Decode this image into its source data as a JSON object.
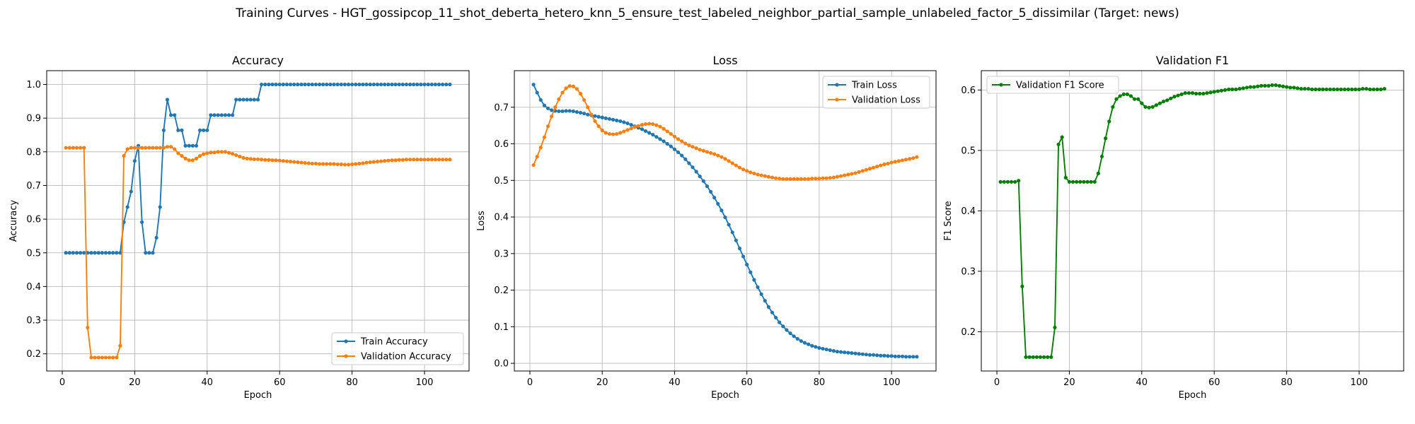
{
  "suptitle": "Training Curves - HGT_gossipcop_11_shot_deberta_hetero_knn_5_ensure_test_labeled_neighbor_partial_sample_unlabeled_factor_5_dissimilar (Target: news)",
  "colors": {
    "blue": "#1f77b4",
    "orange": "#ff7f0e",
    "green": "#008000",
    "grid": "#b0b0b0"
  },
  "chart_data": [
    {
      "type": "line",
      "title": "Accuracy",
      "xlabel": "Epoch",
      "ylabel": "Accuracy",
      "xlim": [
        -4.3,
        112.3
      ],
      "ylim": [
        0.149,
        1.041
      ],
      "xticks": [
        0,
        20,
        40,
        60,
        80,
        100
      ],
      "yticks": [
        0.2,
        0.3,
        0.4,
        0.5,
        0.6,
        0.7,
        0.8,
        0.9,
        1.0
      ],
      "ytick_labels": [
        "0.2",
        "0.3",
        "0.4",
        "0.5",
        "0.6",
        "0.7",
        "0.8",
        "0.9",
        "1.0"
      ],
      "grid": true,
      "legend_position": "lower-right",
      "series": [
        {
          "name": "Train Accuracy",
          "color": "#1f77b4",
          "values": [
            0.5,
            0.5,
            0.5,
            0.5,
            0.5,
            0.5,
            0.5,
            0.5,
            0.5,
            0.5,
            0.5,
            0.5,
            0.5,
            0.5,
            0.5,
            0.5,
            0.591,
            0.636,
            0.682,
            0.773,
            0.818,
            0.591,
            0.5,
            0.5,
            0.5,
            0.545,
            0.636,
            0.864,
            0.955,
            0.909,
            0.909,
            0.864,
            0.864,
            0.818,
            0.818,
            0.818,
            0.818,
            0.864,
            0.864,
            0.864,
            0.909,
            0.909,
            0.909,
            0.909,
            0.909,
            0.909,
            0.909,
            0.955,
            0.955,
            0.955,
            0.955,
            0.955,
            0.955,
            0.955,
            1.0,
            1.0,
            1.0,
            1.0,
            1.0,
            1.0,
            1.0,
            1.0,
            1.0,
            1.0,
            1.0,
            1.0,
            1.0,
            1.0,
            1.0,
            1.0,
            1.0,
            1.0,
            1.0,
            1.0,
            1.0,
            1.0,
            1.0,
            1.0,
            1.0,
            1.0,
            1.0,
            1.0,
            1.0,
            1.0,
            1.0,
            1.0,
            1.0,
            1.0,
            1.0,
            1.0,
            1.0,
            1.0,
            1.0,
            1.0,
            1.0,
            1.0,
            1.0,
            1.0,
            1.0,
            1.0,
            1.0,
            1.0,
            1.0,
            1.0,
            1.0,
            1.0,
            1.0
          ]
        },
        {
          "name": "Validation Accuracy",
          "color": "#ff7f0e",
          "values": [
            0.812,
            0.812,
            0.812,
            0.812,
            0.812,
            0.812,
            0.278,
            0.189,
            0.189,
            0.189,
            0.189,
            0.189,
            0.189,
            0.189,
            0.189,
            0.224,
            0.788,
            0.808,
            0.812,
            0.812,
            0.812,
            0.812,
            0.812,
            0.812,
            0.812,
            0.812,
            0.812,
            0.812,
            0.815,
            0.815,
            0.808,
            0.796,
            0.788,
            0.78,
            0.775,
            0.775,
            0.78,
            0.788,
            0.793,
            0.796,
            0.798,
            0.798,
            0.8,
            0.8,
            0.8,
            0.797,
            0.794,
            0.79,
            0.786,
            0.782,
            0.78,
            0.779,
            0.778,
            0.778,
            0.777,
            0.776,
            0.776,
            0.775,
            0.775,
            0.774,
            0.773,
            0.772,
            0.771,
            0.77,
            0.769,
            0.768,
            0.767,
            0.766,
            0.765,
            0.765,
            0.764,
            0.764,
            0.764,
            0.764,
            0.764,
            0.763,
            0.763,
            0.762,
            0.762,
            0.763,
            0.764,
            0.765,
            0.766,
            0.768,
            0.769,
            0.77,
            0.771,
            0.772,
            0.773,
            0.774,
            0.775,
            0.775,
            0.776,
            0.776,
            0.777,
            0.777,
            0.777,
            0.777,
            0.777,
            0.777,
            0.777,
            0.777,
            0.777,
            0.777,
            0.777,
            0.777,
            0.777
          ]
        }
      ]
    },
    {
      "type": "line",
      "title": "Loss",
      "xlabel": "Epoch",
      "ylabel": "Loss",
      "xlim": [
        -4.3,
        112.3
      ],
      "ylim": [
        -0.021,
        0.8
      ],
      "xticks": [
        0,
        20,
        40,
        60,
        80,
        100
      ],
      "yticks": [
        0.0,
        0.1,
        0.2,
        0.3,
        0.4,
        0.5,
        0.6,
        0.7
      ],
      "ytick_labels": [
        "0.0",
        "0.1",
        "0.2",
        "0.3",
        "0.4",
        "0.5",
        "0.6",
        "0.7"
      ],
      "grid": true,
      "legend_position": "upper-right",
      "series": [
        {
          "name": "Train Loss",
          "color": "#1f77b4",
          "values": [
            0.762,
            0.74,
            0.72,
            0.705,
            0.697,
            0.692,
            0.69,
            0.689,
            0.689,
            0.69,
            0.69,
            0.689,
            0.687,
            0.685,
            0.683,
            0.68,
            0.678,
            0.676,
            0.674,
            0.672,
            0.67,
            0.668,
            0.666,
            0.664,
            0.662,
            0.659,
            0.656,
            0.652,
            0.648,
            0.644,
            0.64,
            0.635,
            0.63,
            0.625,
            0.619,
            0.613,
            0.607,
            0.6,
            0.593,
            0.585,
            0.577,
            0.568,
            0.558,
            0.547,
            0.536,
            0.524,
            0.511,
            0.498,
            0.484,
            0.469,
            0.453,
            0.436,
            0.418,
            0.399,
            0.379,
            0.358,
            0.336,
            0.314,
            0.292,
            0.27,
            0.249,
            0.228,
            0.208,
            0.189,
            0.171,
            0.154,
            0.139,
            0.125,
            0.112,
            0.101,
            0.091,
            0.082,
            0.074,
            0.067,
            0.061,
            0.056,
            0.052,
            0.048,
            0.045,
            0.042,
            0.04,
            0.038,
            0.036,
            0.034,
            0.032,
            0.031,
            0.03,
            0.029,
            0.028,
            0.027,
            0.026,
            0.025,
            0.024,
            0.023,
            0.023,
            0.022,
            0.021,
            0.021,
            0.02,
            0.02,
            0.019,
            0.019,
            0.019,
            0.018,
            0.018,
            0.018,
            0.018
          ]
        },
        {
          "name": "Validation Loss",
          "color": "#ff7f0e",
          "values": [
            0.542,
            0.565,
            0.59,
            0.618,
            0.648,
            0.675,
            0.7,
            0.722,
            0.74,
            0.752,
            0.758,
            0.757,
            0.75,
            0.737,
            0.72,
            0.7,
            0.68,
            0.662,
            0.648,
            0.637,
            0.63,
            0.627,
            0.626,
            0.627,
            0.63,
            0.634,
            0.638,
            0.642,
            0.646,
            0.649,
            0.652,
            0.654,
            0.655,
            0.654,
            0.651,
            0.647,
            0.641,
            0.634,
            0.627,
            0.62,
            0.613,
            0.607,
            0.601,
            0.596,
            0.592,
            0.588,
            0.584,
            0.581,
            0.578,
            0.575,
            0.572,
            0.568,
            0.564,
            0.559,
            0.553,
            0.547,
            0.541,
            0.535,
            0.53,
            0.526,
            0.522,
            0.519,
            0.516,
            0.514,
            0.512,
            0.51,
            0.508,
            0.506,
            0.505,
            0.504,
            0.504,
            0.504,
            0.504,
            0.504,
            0.504,
            0.504,
            0.504,
            0.505,
            0.505,
            0.505,
            0.506,
            0.506,
            0.507,
            0.508,
            0.51,
            0.512,
            0.514,
            0.516,
            0.518,
            0.52,
            0.523,
            0.526,
            0.529,
            0.532,
            0.535,
            0.538,
            0.541,
            0.544,
            0.546,
            0.549,
            0.551,
            0.553,
            0.555,
            0.557,
            0.559,
            0.561,
            0.564
          ]
        }
      ]
    },
    {
      "type": "line",
      "title": "Validation F1",
      "xlabel": "Epoch",
      "ylabel": "F1 Score",
      "xlim": [
        -4.3,
        112.3
      ],
      "ylim": [
        0.135,
        0.632
      ],
      "xticks": [
        0,
        20,
        40,
        60,
        80,
        100
      ],
      "yticks": [
        0.2,
        0.3,
        0.4,
        0.5,
        0.6
      ],
      "ytick_labels": [
        "0.2",
        "0.3",
        "0.4",
        "0.5",
        "0.6"
      ],
      "grid": true,
      "legend_position": "upper-left",
      "series": [
        {
          "name": "Validation F1 Score",
          "color": "#008000",
          "values": [
            0.448,
            0.448,
            0.448,
            0.448,
            0.448,
            0.45,
            0.275,
            0.158,
            0.158,
            0.158,
            0.158,
            0.158,
            0.158,
            0.158,
            0.158,
            0.207,
            0.51,
            0.522,
            0.455,
            0.448,
            0.448,
            0.448,
            0.448,
            0.448,
            0.448,
            0.448,
            0.448,
            0.462,
            0.49,
            0.52,
            0.548,
            0.572,
            0.585,
            0.59,
            0.593,
            0.593,
            0.59,
            0.585,
            0.585,
            0.578,
            0.572,
            0.571,
            0.572,
            0.575,
            0.578,
            0.581,
            0.583,
            0.586,
            0.589,
            0.591,
            0.593,
            0.595,
            0.595,
            0.595,
            0.594,
            0.594,
            0.594,
            0.595,
            0.596,
            0.597,
            0.598,
            0.599,
            0.6,
            0.601,
            0.601,
            0.601,
            0.602,
            0.603,
            0.604,
            0.605,
            0.605,
            0.606,
            0.607,
            0.607,
            0.607,
            0.608,
            0.608,
            0.607,
            0.606,
            0.605,
            0.604,
            0.604,
            0.603,
            0.602,
            0.602,
            0.602,
            0.601,
            0.601,
            0.601,
            0.601,
            0.601,
            0.601,
            0.601,
            0.601,
            0.601,
            0.601,
            0.601,
            0.601,
            0.601,
            0.601,
            0.602,
            0.602,
            0.601,
            0.601,
            0.601,
            0.601,
            0.602
          ]
        }
      ]
    }
  ]
}
